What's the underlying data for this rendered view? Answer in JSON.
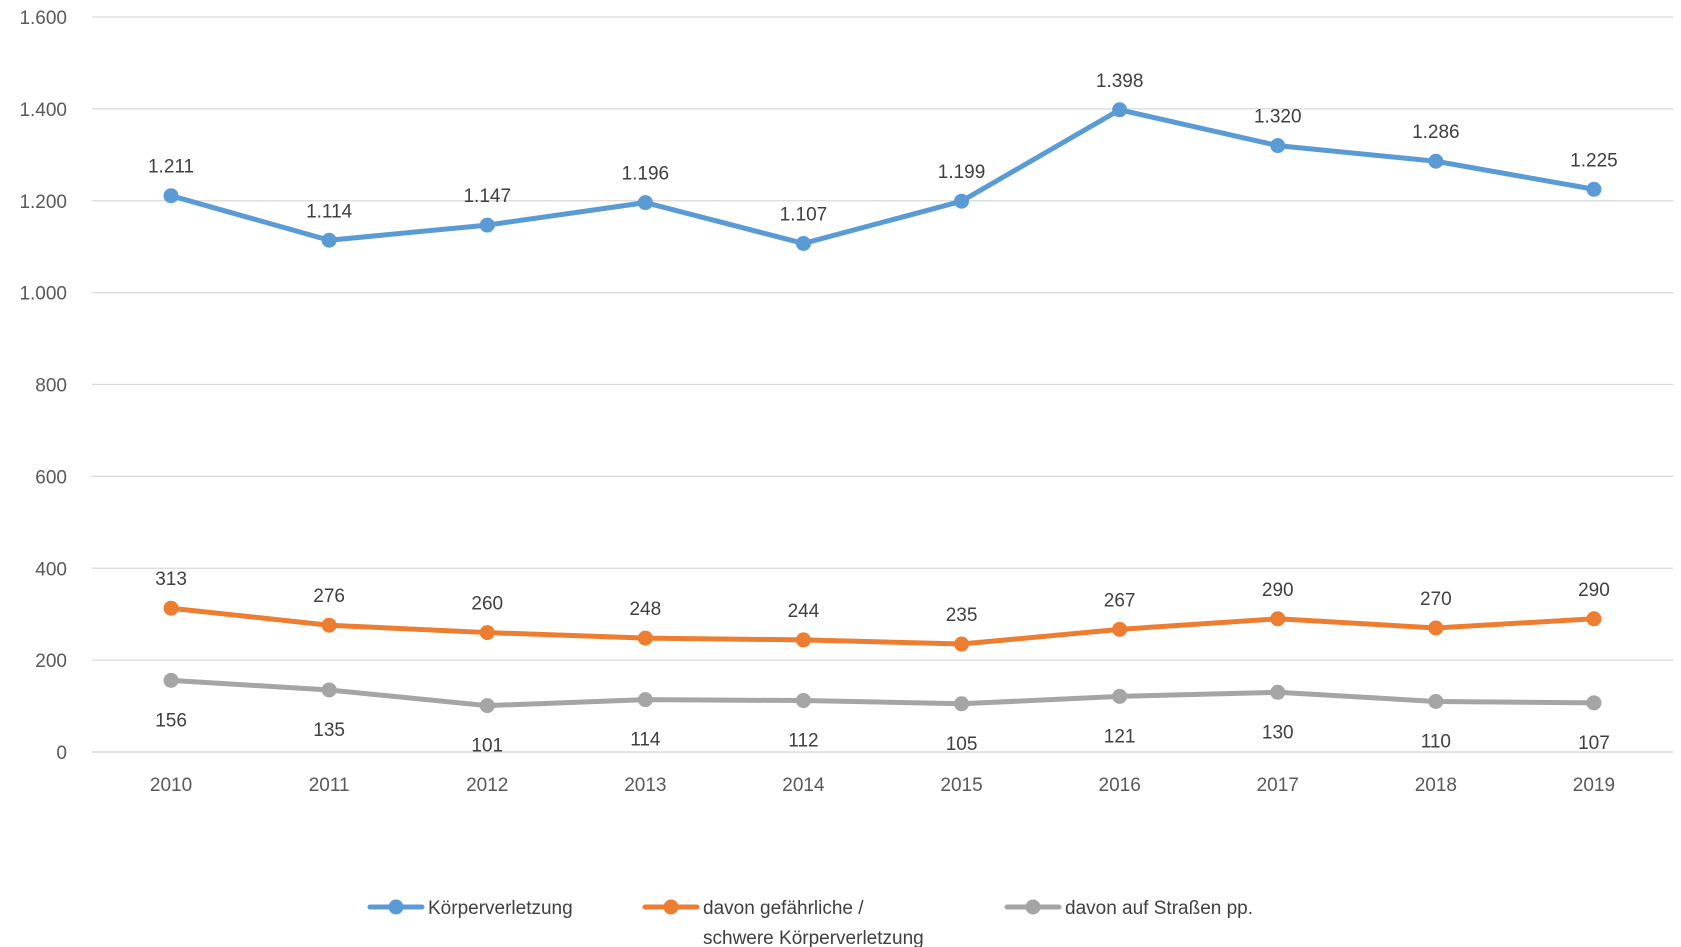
{
  "chart_data": {
    "type": "line",
    "title": "",
    "xlabel": "",
    "ylabel": "",
    "categories": [
      "2010",
      "2011",
      "2012",
      "2013",
      "2014",
      "2015",
      "2016",
      "2017",
      "2018",
      "2019"
    ],
    "ylim": [
      0,
      1600
    ],
    "yticks": [
      0,
      200,
      400,
      600,
      800,
      1000,
      1200,
      1400,
      1600
    ],
    "ytick_labels": [
      "0",
      "200",
      "400",
      "600",
      "800",
      "1.000",
      "1.200",
      "1.400",
      "1.600"
    ],
    "grid": true,
    "legend_position": "bottom",
    "series": [
      {
        "name": "Körperverletzung",
        "legend_lines": [
          "Körperverletzung"
        ],
        "color": "#5B9BD5",
        "values": [
          1211,
          1114,
          1147,
          1196,
          1107,
          1199,
          1398,
          1320,
          1286,
          1225
        ],
        "labels": [
          "1.211",
          "1.114",
          "1.147",
          "1.196",
          "1.107",
          "1.199",
          "1.398",
          "1.320",
          "1.286",
          "1.225"
        ],
        "label_position": "above"
      },
      {
        "name": "davon gefährliche / schwere Körperverletzung",
        "legend_lines": [
          "davon gefährliche /",
          "schwere Körperverletzung"
        ],
        "color": "#ED7D31",
        "values": [
          313,
          276,
          260,
          248,
          244,
          235,
          267,
          290,
          270,
          290
        ],
        "labels": [
          "313",
          "276",
          "260",
          "248",
          "244",
          "235",
          "267",
          "290",
          "270",
          "290"
        ],
        "label_position": "above"
      },
      {
        "name": "davon auf Straßen pp.",
        "legend_lines": [
          "davon auf Straßen pp."
        ],
        "color": "#A5A5A5",
        "values": [
          156,
          135,
          101,
          114,
          112,
          105,
          121,
          130,
          110,
          107
        ],
        "labels": [
          "156",
          "135",
          "101",
          "114",
          "112",
          "105",
          "121",
          "130",
          "110",
          "107"
        ],
        "label_position": "below"
      }
    ]
  }
}
